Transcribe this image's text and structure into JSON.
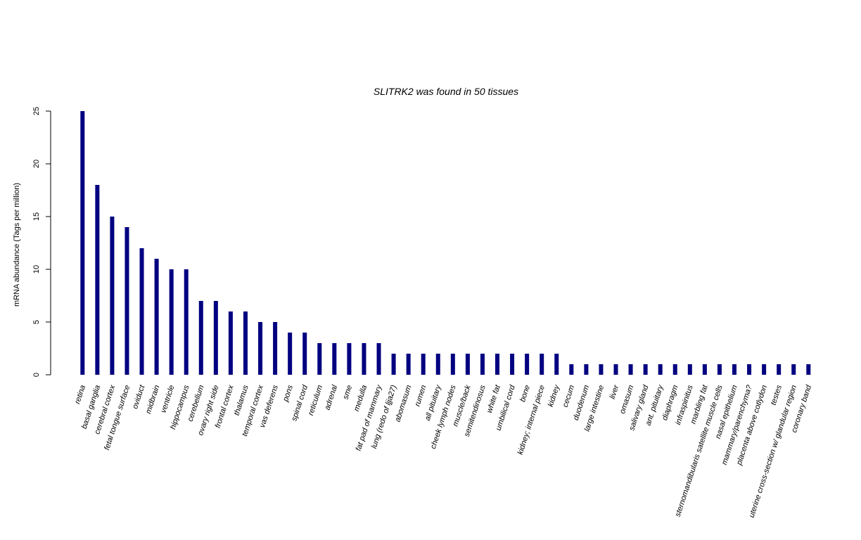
{
  "chart_data": {
    "type": "bar",
    "title": "SLITRK2  was found in  50  tissues",
    "xlabel": "",
    "ylabel": "mRNA abundance (Tags per million)",
    "ylim": [
      0,
      25
    ],
    "yticks": [
      0,
      5,
      10,
      15,
      20,
      25
    ],
    "grid": false,
    "bar_color": "#000080",
    "categories": [
      "retina",
      "basal ganglia",
      "cerebral cortex",
      "fetal tongue surface",
      "oviduct",
      "midbrain",
      "ventricle",
      "hippocampus",
      "cerebellum",
      "ovary right side",
      "frontal cortex",
      "thalamus",
      "temporal cortex",
      "vas deferens",
      "pons",
      "spinal cord",
      "reticulum",
      "adrenal",
      "sme",
      "medulla",
      "fat pad of mammary",
      "lung (redo of ljja27)",
      "abomasum",
      "rumen",
      "all pituitary",
      "cheek lymph nodes",
      "muscle/back",
      "semitendinosus",
      "white fat",
      "umbilical cord",
      "bone",
      "kidney; internal piece",
      "kidney",
      "cecum",
      "duodenum",
      "large intestine",
      "liver",
      "omasum",
      "salivary gland",
      "ant. pituitary",
      "diaphragm",
      "infraspinitus",
      "marbling fat",
      "sternomandibularis satellite muscle cells",
      "nasal epithelium",
      "mammary/parenchyma?",
      "placenta above cotlydon",
      "testes",
      "uterine cross-section w/ glandular region",
      "coronary band"
    ],
    "values": [
      25,
      18,
      15,
      14,
      12,
      11,
      10,
      10,
      7,
      7,
      6,
      6,
      5,
      5,
      4,
      4,
      3,
      3,
      3,
      3,
      3,
      2,
      2,
      2,
      2,
      2,
      2,
      2,
      2,
      2,
      2,
      2,
      2,
      1,
      1,
      1,
      1,
      1,
      1,
      1,
      1,
      1,
      1,
      1,
      1,
      1,
      1,
      1,
      1,
      1
    ]
  }
}
